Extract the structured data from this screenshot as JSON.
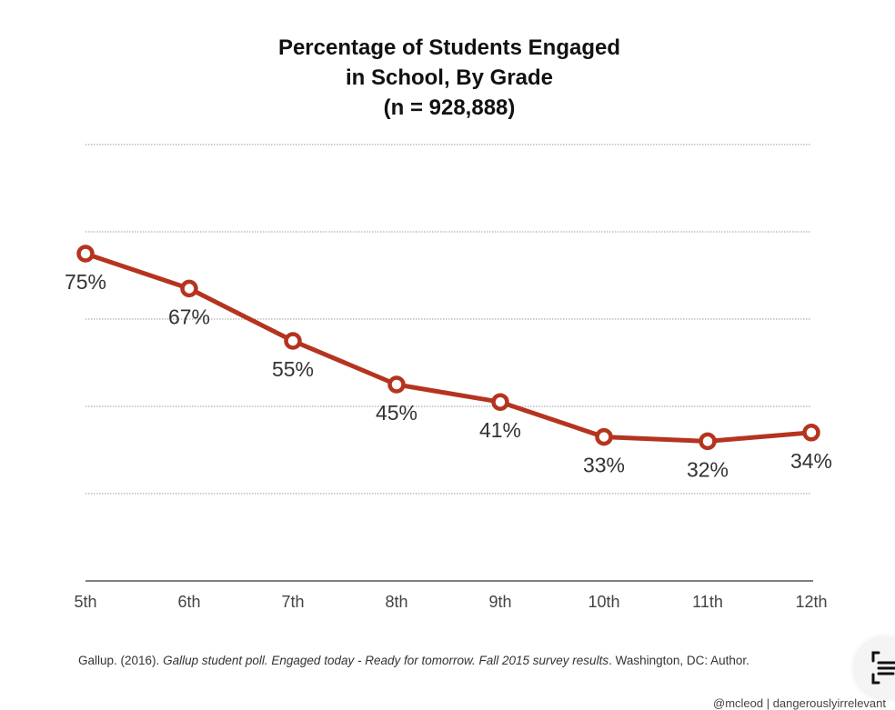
{
  "chart_data": {
    "type": "line",
    "title": "Percentage of Students Engaged in School, By Grade (n = 928,888)",
    "title_lines": [
      "Percentage of Students Engaged",
      "in School, By Grade",
      "(n = 928,888)"
    ],
    "xlabel": "",
    "ylabel": "",
    "categories": [
      "5th",
      "6th",
      "7th",
      "8th",
      "9th",
      "10th",
      "11th",
      "12th"
    ],
    "series": [
      {
        "name": "Engaged",
        "values": [
          75,
          67,
          55,
          45,
          41,
          33,
          32,
          34
        ],
        "labels": [
          "75%",
          "67%",
          "55%",
          "45%",
          "41%",
          "33%",
          "32%",
          "34%"
        ],
        "color": "#b5341f"
      }
    ],
    "ylim": [
      0,
      100
    ],
    "y_gridlines": [
      20,
      40,
      60,
      80,
      100
    ],
    "y_tick_labels_visible": false,
    "grid": true,
    "grid_style": "dotted",
    "legend": "none"
  },
  "source": {
    "author": "Gallup. (2016). ",
    "title": "Gallup student poll. Engaged today - Ready for tomorrow. Fall 2015 survey results",
    "rest": ". Washington, DC: Author."
  },
  "credit": "@mcleod | dangerouslyirrelevant",
  "overlay": {
    "icon": "scan-text-icon"
  }
}
